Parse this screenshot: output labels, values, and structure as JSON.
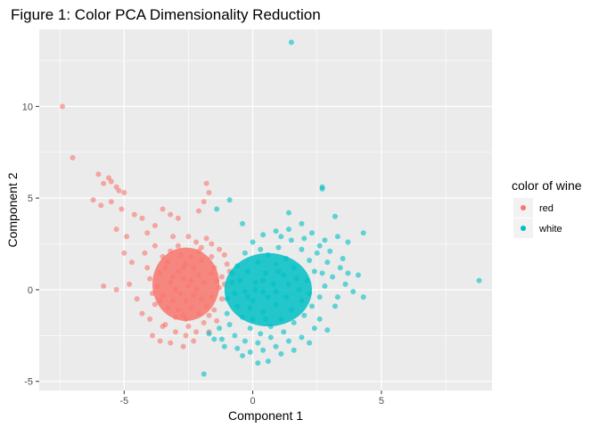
{
  "chart_data": {
    "type": "scatter",
    "title": "Figure 1: Color PCA Dimensionality Reduction",
    "xlabel": "Component 1",
    "ylabel": "Component 2",
    "xlim": [
      -8.3,
      9.3
    ],
    "ylim": [
      -5.5,
      14.2
    ],
    "x_ticks": [
      -5,
      0,
      5
    ],
    "x_tick_labels": [
      "-5",
      "0",
      "5"
    ],
    "y_ticks": [
      -5,
      0,
      5,
      10
    ],
    "y_tick_labels": [
      "-5",
      "0",
      "5",
      "10"
    ],
    "grid": true,
    "legend": {
      "title": "color of wine",
      "position": "right",
      "entries": [
        {
          "label": "red",
          "color": "#F8766D"
        },
        {
          "label": "white",
          "color": "#00BFC4"
        }
      ]
    },
    "series": [
      {
        "name": "red",
        "color": "#F8766D",
        "points": [
          [
            -7.4,
            10.0
          ],
          [
            -7.0,
            7.2
          ],
          [
            -6.0,
            6.3
          ],
          [
            -5.8,
            5.8
          ],
          [
            -5.6,
            6.1
          ],
          [
            -5.5,
            5.9
          ],
          [
            -5.3,
            5.6
          ],
          [
            -5.2,
            5.4
          ],
          [
            -5.0,
            5.3
          ],
          [
            -6.2,
            4.9
          ],
          [
            -5.9,
            4.6
          ],
          [
            -5.5,
            4.8
          ],
          [
            -5.1,
            4.4
          ],
          [
            -4.6,
            4.1
          ],
          [
            -4.3,
            3.9
          ],
          [
            -5.3,
            3.3
          ],
          [
            -4.9,
            2.9
          ],
          [
            -5.0,
            2.0
          ],
          [
            -4.7,
            1.5
          ],
          [
            -5.8,
            0.2
          ],
          [
            -5.3,
            0.0
          ],
          [
            -4.8,
            0.3
          ],
          [
            -4.5,
            -0.5
          ],
          [
            -4.3,
            -1.3
          ],
          [
            -3.9,
            -2.5
          ],
          [
            -3.6,
            -2.8
          ],
          [
            -3.2,
            -2.9
          ],
          [
            -2.7,
            -3.1
          ],
          [
            -2.3,
            -2.8
          ],
          [
            -1.8,
            5.8
          ],
          [
            -1.7,
            5.3
          ],
          [
            -1.9,
            4.8
          ],
          [
            -2.1,
            4.3
          ],
          [
            -3.5,
            4.4
          ],
          [
            -3.2,
            4.1
          ],
          [
            -2.9,
            3.9
          ],
          [
            -4.1,
            3.1
          ],
          [
            -3.8,
            3.5
          ],
          [
            -1.3,
            2.2
          ],
          [
            -1.1,
            1.9
          ],
          [
            -1.0,
            1.4
          ],
          [
            -0.9,
            1.0
          ],
          [
            -1.2,
            0.7
          ],
          [
            -1.6,
            -0.4
          ],
          [
            -1.5,
            -1.1
          ],
          [
            -1.4,
            -1.7
          ],
          [
            -1.7,
            -2.3
          ],
          [
            -4.2,
            2.0
          ],
          [
            -4.1,
            1.2
          ],
          [
            -4.0,
            0.6
          ],
          [
            -3.9,
            -0.2
          ],
          [
            -3.8,
            -0.8
          ],
          [
            -3.8,
            2.4
          ],
          [
            -3.5,
            1.8
          ],
          [
            -3.3,
            1.5
          ],
          [
            -3.6,
            0.9
          ],
          [
            -3.2,
            0.4
          ],
          [
            -3.5,
            -0.3
          ],
          [
            -3.3,
            -1.0
          ],
          [
            -3.0,
            -1.5
          ],
          [
            -3.4,
            -1.9
          ],
          [
            -2.9,
            2.4
          ],
          [
            -2.8,
            1.9
          ],
          [
            -2.6,
            1.4
          ],
          [
            -2.9,
            1.0
          ],
          [
            -2.7,
            0.6
          ],
          [
            -2.5,
            0.2
          ],
          [
            -2.8,
            -0.2
          ],
          [
            -2.6,
            -0.6
          ],
          [
            -2.4,
            -1.0
          ],
          [
            -2.7,
            -1.4
          ],
          [
            -2.5,
            -2.0
          ],
          [
            -2.2,
            2.6
          ],
          [
            -2.1,
            2.1
          ],
          [
            -2.0,
            1.6
          ],
          [
            -2.3,
            1.2
          ],
          [
            -2.1,
            0.8
          ],
          [
            -1.9,
            0.4
          ],
          [
            -2.2,
            0.0
          ],
          [
            -2.0,
            -0.5
          ],
          [
            -1.8,
            -0.9
          ],
          [
            -2.1,
            -1.3
          ],
          [
            -1.9,
            -1.8
          ],
          [
            -3.1,
            2.9
          ],
          [
            -2.5,
            2.9
          ],
          [
            -1.8,
            2.8
          ],
          [
            -1.6,
            1.8
          ],
          [
            -1.5,
            1.2
          ],
          [
            -1.4,
            0.5
          ],
          [
            -1.3,
            0.1
          ],
          [
            -3.0,
            0.0
          ],
          [
            -2.4,
            0.5
          ],
          [
            -2.3,
            -0.3
          ],
          [
            -3.1,
            0.7
          ],
          [
            -2.7,
            1.2
          ],
          [
            -3.4,
            1.2
          ],
          [
            -3.7,
            0.2
          ],
          [
            -3.6,
            -0.6
          ],
          [
            -3.1,
            -0.6
          ],
          [
            -2.9,
            -1.1
          ],
          [
            -2.6,
            -1.6
          ],
          [
            -2.2,
            -2.3
          ],
          [
            -1.7,
            -1.4
          ],
          [
            -1.6,
            0.9
          ],
          [
            -2.4,
            1.8
          ],
          [
            -3.2,
            2.1
          ],
          [
            -2.0,
            2.3
          ],
          [
            -1.6,
            2.5
          ],
          [
            -2.6,
            -2.5
          ],
          [
            -3.0,
            -2.3
          ],
          [
            -3.5,
            -2.0
          ],
          [
            -4.0,
            -1.6
          ],
          [
            -1.2,
            -0.5
          ],
          [
            -1.1,
            0.3
          ]
        ]
      },
      {
        "name": "white",
        "color": "#00BFC4",
        "points": [
          [
            1.5,
            13.5
          ],
          [
            8.8,
            0.5
          ],
          [
            2.7,
            5.6
          ],
          [
            2.7,
            5.5
          ],
          [
            -0.9,
            4.9
          ],
          [
            -1.4,
            4.4
          ],
          [
            -0.4,
            3.6
          ],
          [
            1.4,
            4.2
          ],
          [
            3.2,
            4.0
          ],
          [
            4.3,
            3.1
          ],
          [
            4.1,
            0.8
          ],
          [
            4.3,
            -0.4
          ],
          [
            3.9,
            -0.1
          ],
          [
            3.7,
            0.9
          ],
          [
            3.5,
            1.7
          ],
          [
            3.7,
            2.6
          ],
          [
            3.3,
            2.9
          ],
          [
            3.2,
            -0.9
          ],
          [
            2.6,
            -1.6
          ],
          [
            2.9,
            -2.2
          ],
          [
            2.2,
            -2.9
          ],
          [
            1.6,
            -3.3
          ],
          [
            1.1,
            -3.5
          ],
          [
            0.6,
            -3.9
          ],
          [
            0.2,
            -4.0
          ],
          [
            -0.4,
            -3.6
          ],
          [
            -1.1,
            -3.1
          ],
          [
            -1.5,
            -2.7
          ],
          [
            -1.9,
            -4.6
          ],
          [
            -1.3,
            -2.1
          ],
          [
            -1.0,
            -1.3
          ],
          [
            -1.0,
            -0.5
          ],
          [
            -0.8,
            0.4
          ],
          [
            -0.6,
            1.3
          ],
          [
            -0.3,
            2.0
          ],
          [
            0.0,
            2.6
          ],
          [
            0.4,
            3.0
          ],
          [
            0.9,
            3.2
          ],
          [
            1.4,
            3.3
          ],
          [
            1.9,
            3.6
          ],
          [
            2.3,
            3.1
          ],
          [
            2.8,
            2.7
          ],
          [
            3.0,
            2.1
          ],
          [
            2.9,
            1.5
          ],
          [
            3.1,
            0.7
          ],
          [
            2.8,
            0.2
          ],
          [
            2.6,
            -0.4
          ],
          [
            2.3,
            -0.9
          ],
          [
            2.0,
            -1.4
          ],
          [
            1.6,
            -1.8
          ],
          [
            1.2,
            -2.3
          ],
          [
            0.7,
            -2.6
          ],
          [
            0.2,
            -2.9
          ],
          [
            -0.3,
            -2.8
          ],
          [
            -0.7,
            -2.5
          ],
          [
            -0.9,
            -1.9
          ],
          [
            0.0,
            -1.6
          ],
          [
            0.4,
            -1.2
          ],
          [
            0.9,
            -0.8
          ],
          [
            1.3,
            -0.4
          ],
          [
            1.8,
            0.0
          ],
          [
            2.1,
            0.5
          ],
          [
            2.4,
            1.0
          ],
          [
            2.2,
            1.6
          ],
          [
            1.9,
            2.2
          ],
          [
            1.5,
            2.7
          ],
          [
            1.0,
            2.3
          ],
          [
            0.6,
            1.9
          ],
          [
            0.2,
            1.5
          ],
          [
            -0.2,
            1.0
          ],
          [
            -0.5,
            0.5
          ],
          [
            -0.3,
            -0.1
          ],
          [
            0.0,
            -0.6
          ],
          [
            0.4,
            -0.1
          ],
          [
            0.8,
            0.3
          ],
          [
            1.2,
            0.8
          ],
          [
            1.6,
            1.2
          ],
          [
            1.3,
            1.7
          ],
          [
            0.9,
            1.4
          ],
          [
            0.5,
            0.9
          ],
          [
            0.1,
            0.4
          ],
          [
            -0.2,
            -0.4
          ],
          [
            -0.6,
            -0.9
          ],
          [
            -0.4,
            -1.5
          ],
          [
            -0.1,
            -2.1
          ],
          [
            0.3,
            -2.4
          ],
          [
            0.7,
            -2.0
          ],
          [
            1.1,
            -1.6
          ],
          [
            1.5,
            -1.1
          ],
          [
            1.9,
            -0.6
          ],
          [
            2.5,
            2.0
          ],
          [
            2.7,
            0.9
          ],
          [
            2.2,
            -0.2
          ],
          [
            1.7,
            0.6
          ],
          [
            0.6,
            -0.4
          ],
          [
            -0.7,
            -0.2
          ],
          [
            -0.8,
            0.9
          ],
          [
            0.3,
            2.2
          ],
          [
            1.1,
            2.9
          ],
          [
            2.0,
            2.8
          ],
          [
            2.6,
            2.4
          ],
          [
            3.4,
            1.2
          ],
          [
            3.6,
            0.3
          ],
          [
            3.3,
            -0.4
          ],
          [
            2.4,
            -2.1
          ],
          [
            1.9,
            -2.6
          ],
          [
            1.4,
            -2.8
          ],
          [
            0.9,
            -3.1
          ],
          [
            0.4,
            -3.3
          ],
          [
            -0.1,
            -3.4
          ],
          [
            -0.6,
            -3.2
          ],
          [
            -1.2,
            -2.7
          ],
          [
            -1.7,
            -2.4
          ],
          [
            0.1,
            0.0
          ],
          [
            0.9,
            -0.1
          ],
          [
            1.4,
            0.3
          ],
          [
            1.0,
            1.0
          ],
          [
            0.4,
            0.5
          ],
          [
            -0.1,
            -1.0
          ],
          [
            0.5,
            -1.6
          ]
        ]
      }
    ]
  }
}
